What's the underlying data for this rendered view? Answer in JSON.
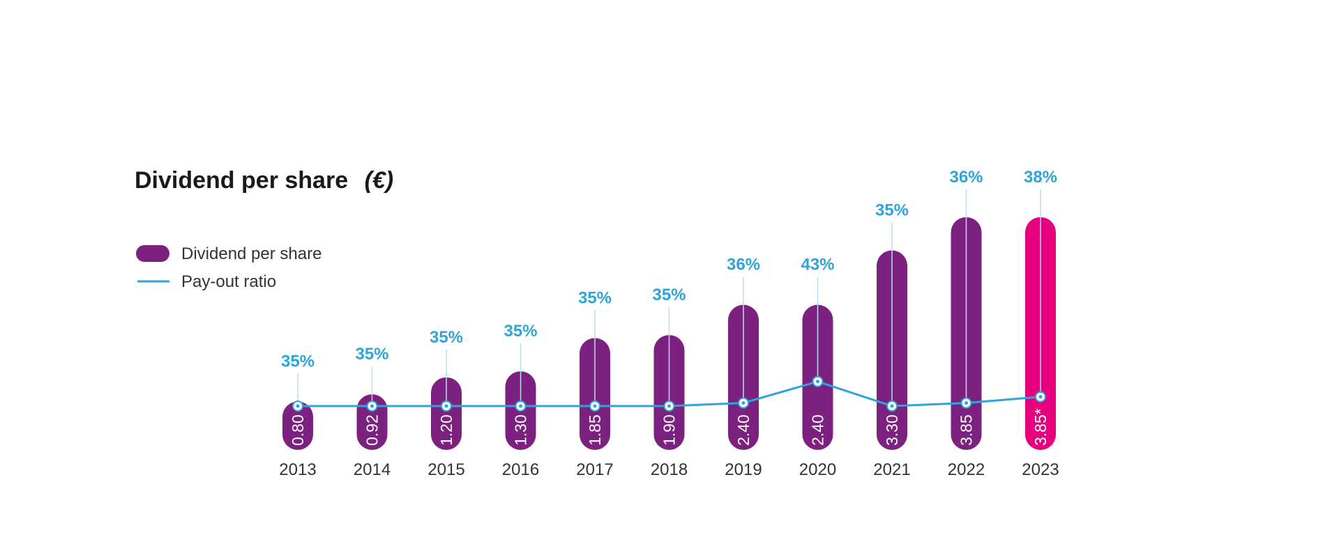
{
  "chart_data": {
    "type": "bar",
    "title": "Dividend per share",
    "title_unit": "(€)",
    "categories": [
      "2013",
      "2014",
      "2015",
      "2016",
      "2017",
      "2018",
      "2019",
      "2020",
      "2021",
      "2022",
      "2023"
    ],
    "series": [
      {
        "name": "Dividend per share",
        "type": "bar",
        "values": [
          0.8,
          0.92,
          1.2,
          1.3,
          1.85,
          1.9,
          2.4,
          2.4,
          3.3,
          3.85,
          3.85
        ],
        "value_labels": [
          "0.80",
          "0.92",
          "1.20",
          "1.30",
          "1.85",
          "1.90",
          "2.40",
          "2.40",
          "3.30",
          "3.85",
          "3.85*"
        ],
        "color": "#7d2181",
        "highlight_color": "#e6007e",
        "highlight_index": 10
      },
      {
        "name": "Pay-out ratio",
        "type": "line",
        "values": [
          35,
          35,
          35,
          35,
          35,
          35,
          36,
          43,
          35,
          36,
          38
        ],
        "value_labels": [
          "35%",
          "35%",
          "35%",
          "35%",
          "35%",
          "35%",
          "36%",
          "43%",
          "35%",
          "36%",
          "38%"
        ],
        "color": "#2ea3dc"
      }
    ],
    "legend": {
      "placement": "top-left",
      "items": [
        {
          "label": "Dividend per share",
          "symbol": "bar",
          "color": "#7d2181"
        },
        {
          "label": "Pay-out ratio",
          "symbol": "line",
          "color": "#2ea3dc"
        }
      ]
    },
    "grid": false,
    "xlabel": "",
    "ylabel": ""
  }
}
